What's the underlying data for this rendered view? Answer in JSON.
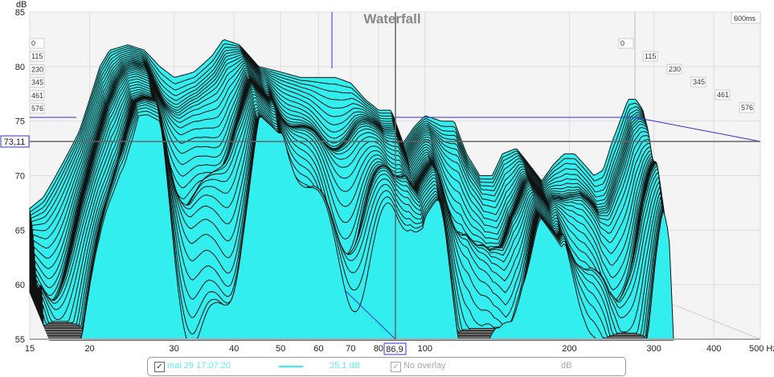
{
  "chart_data": {
    "type": "waterfall",
    "title": "Waterfall",
    "ylabel": "dB",
    "xlabel": "Hz",
    "ylim": [
      55,
      85
    ],
    "xlim": [
      15,
      500
    ],
    "xscale": "log",
    "yticks": [
      55,
      60,
      65,
      70,
      75,
      80,
      85
    ],
    "xticks": [
      15,
      20,
      30,
      40,
      50,
      60,
      70,
      80,
      100,
      200,
      300,
      400,
      500
    ],
    "xtick_labels": [
      "15",
      "20",
      "30",
      "40",
      "50",
      "60",
      "70",
      "80",
      "100",
      "200",
      "300",
      "400",
      "500 Hz"
    ],
    "time_labels": [
      "0",
      "115",
      "230",
      "345",
      "461",
      "576"
    ],
    "time_end_label": "600ms",
    "series_color": "#33eeee",
    "initial_response": {
      "freq": [
        15,
        16,
        17,
        18,
        19,
        20,
        21,
        22,
        24,
        26,
        28,
        30,
        33,
        36,
        38,
        41,
        45,
        50,
        55,
        60,
        65,
        70,
        75,
        80,
        85,
        90,
        95,
        100,
        108,
        115,
        122,
        130,
        138,
        145,
        155,
        165,
        175,
        185,
        195,
        205,
        215,
        225,
        235,
        245,
        255,
        265,
        275,
        285,
        295,
        300
      ],
      "db": [
        67,
        68,
        70,
        72,
        74,
        77,
        80,
        81.5,
        82,
        81.5,
        80,
        79,
        79.5,
        81,
        82.5,
        82,
        80,
        79.5,
        79,
        79,
        79,
        78.5,
        77,
        76,
        76,
        73,
        74.5,
        75.5,
        75,
        75,
        72,
        70,
        70,
        72,
        72.5,
        71,
        69.5,
        71,
        72,
        72,
        71,
        70,
        70.5,
        73,
        75,
        77,
        77,
        76,
        70,
        60
      ]
    },
    "cursor": {
      "freq_label": "86,9",
      "db_label": "73,11"
    }
  },
  "legend": {
    "checked": true,
    "name": "mai 29 17:07:20",
    "value": "25,1 dB",
    "overlay": "No overlay",
    "unit": "dB"
  }
}
